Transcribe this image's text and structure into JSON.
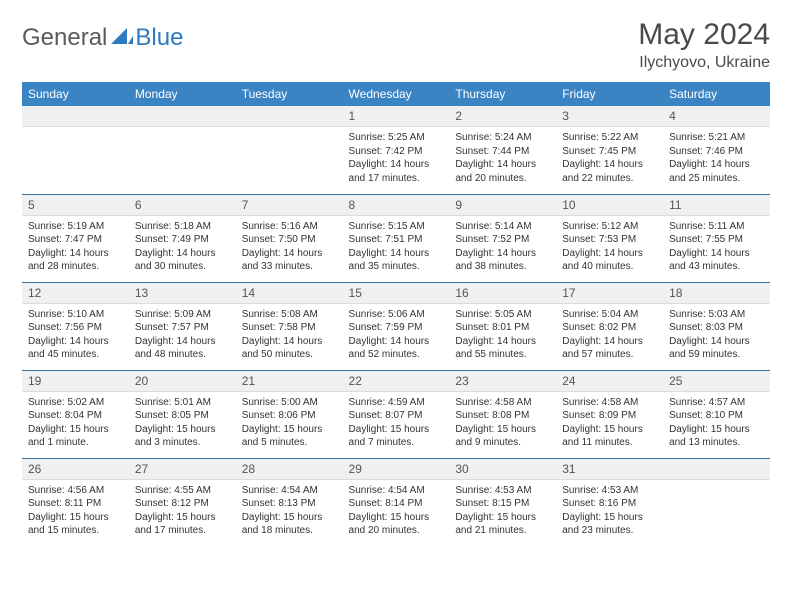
{
  "brand": {
    "text1": "General",
    "text2": "Blue"
  },
  "title": "May 2024",
  "location": "Ilychyovo, Ukraine",
  "colors": {
    "header_bg": "#3b84c4",
    "header_text": "#ffffff",
    "daynum_bg": "#eef0f2",
    "row_border": "#3b6fa0",
    "logo_gray": "#5a5a5a",
    "logo_blue": "#2f7bbf",
    "text": "#333333",
    "background": "#ffffff"
  },
  "typography": {
    "title_fontsize": 30,
    "location_fontsize": 16,
    "header_fontsize": 12,
    "daynum_fontsize": 12,
    "body_fontsize": 10
  },
  "days_of_week": [
    "Sunday",
    "Monday",
    "Tuesday",
    "Wednesday",
    "Thursday",
    "Friday",
    "Saturday"
  ],
  "weeks": [
    [
      null,
      null,
      null,
      {
        "n": "1",
        "sr": "5:25 AM",
        "ss": "7:42 PM",
        "dl": "14 hours and 17 minutes."
      },
      {
        "n": "2",
        "sr": "5:24 AM",
        "ss": "7:44 PM",
        "dl": "14 hours and 20 minutes."
      },
      {
        "n": "3",
        "sr": "5:22 AM",
        "ss": "7:45 PM",
        "dl": "14 hours and 22 minutes."
      },
      {
        "n": "4",
        "sr": "5:21 AM",
        "ss": "7:46 PM",
        "dl": "14 hours and 25 minutes."
      }
    ],
    [
      {
        "n": "5",
        "sr": "5:19 AM",
        "ss": "7:47 PM",
        "dl": "14 hours and 28 minutes."
      },
      {
        "n": "6",
        "sr": "5:18 AM",
        "ss": "7:49 PM",
        "dl": "14 hours and 30 minutes."
      },
      {
        "n": "7",
        "sr": "5:16 AM",
        "ss": "7:50 PM",
        "dl": "14 hours and 33 minutes."
      },
      {
        "n": "8",
        "sr": "5:15 AM",
        "ss": "7:51 PM",
        "dl": "14 hours and 35 minutes."
      },
      {
        "n": "9",
        "sr": "5:14 AM",
        "ss": "7:52 PM",
        "dl": "14 hours and 38 minutes."
      },
      {
        "n": "10",
        "sr": "5:12 AM",
        "ss": "7:53 PM",
        "dl": "14 hours and 40 minutes."
      },
      {
        "n": "11",
        "sr": "5:11 AM",
        "ss": "7:55 PM",
        "dl": "14 hours and 43 minutes."
      }
    ],
    [
      {
        "n": "12",
        "sr": "5:10 AM",
        "ss": "7:56 PM",
        "dl": "14 hours and 45 minutes."
      },
      {
        "n": "13",
        "sr": "5:09 AM",
        "ss": "7:57 PM",
        "dl": "14 hours and 48 minutes."
      },
      {
        "n": "14",
        "sr": "5:08 AM",
        "ss": "7:58 PM",
        "dl": "14 hours and 50 minutes."
      },
      {
        "n": "15",
        "sr": "5:06 AM",
        "ss": "7:59 PM",
        "dl": "14 hours and 52 minutes."
      },
      {
        "n": "16",
        "sr": "5:05 AM",
        "ss": "8:01 PM",
        "dl": "14 hours and 55 minutes."
      },
      {
        "n": "17",
        "sr": "5:04 AM",
        "ss": "8:02 PM",
        "dl": "14 hours and 57 minutes."
      },
      {
        "n": "18",
        "sr": "5:03 AM",
        "ss": "8:03 PM",
        "dl": "14 hours and 59 minutes."
      }
    ],
    [
      {
        "n": "19",
        "sr": "5:02 AM",
        "ss": "8:04 PM",
        "dl": "15 hours and 1 minute."
      },
      {
        "n": "20",
        "sr": "5:01 AM",
        "ss": "8:05 PM",
        "dl": "15 hours and 3 minutes."
      },
      {
        "n": "21",
        "sr": "5:00 AM",
        "ss": "8:06 PM",
        "dl": "15 hours and 5 minutes."
      },
      {
        "n": "22",
        "sr": "4:59 AM",
        "ss": "8:07 PM",
        "dl": "15 hours and 7 minutes."
      },
      {
        "n": "23",
        "sr": "4:58 AM",
        "ss": "8:08 PM",
        "dl": "15 hours and 9 minutes."
      },
      {
        "n": "24",
        "sr": "4:58 AM",
        "ss": "8:09 PM",
        "dl": "15 hours and 11 minutes."
      },
      {
        "n": "25",
        "sr": "4:57 AM",
        "ss": "8:10 PM",
        "dl": "15 hours and 13 minutes."
      }
    ],
    [
      {
        "n": "26",
        "sr": "4:56 AM",
        "ss": "8:11 PM",
        "dl": "15 hours and 15 minutes."
      },
      {
        "n": "27",
        "sr": "4:55 AM",
        "ss": "8:12 PM",
        "dl": "15 hours and 17 minutes."
      },
      {
        "n": "28",
        "sr": "4:54 AM",
        "ss": "8:13 PM",
        "dl": "15 hours and 18 minutes."
      },
      {
        "n": "29",
        "sr": "4:54 AM",
        "ss": "8:14 PM",
        "dl": "15 hours and 20 minutes."
      },
      {
        "n": "30",
        "sr": "4:53 AM",
        "ss": "8:15 PM",
        "dl": "15 hours and 21 minutes."
      },
      {
        "n": "31",
        "sr": "4:53 AM",
        "ss": "8:16 PM",
        "dl": "15 hours and 23 minutes."
      },
      null
    ]
  ],
  "labels": {
    "sunrise": "Sunrise:",
    "sunset": "Sunset:",
    "daylight": "Daylight:"
  }
}
